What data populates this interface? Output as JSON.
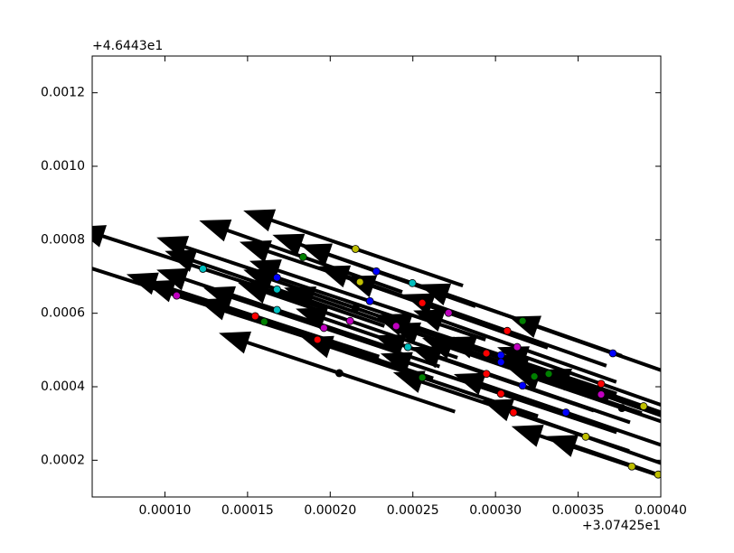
{
  "chart_data": {
    "type": "quiver",
    "x_offset": "+3.07425e1",
    "y_offset": "+4.6443e1",
    "xlim": [
      5.6e-05,
      0.0004
    ],
    "ylim": [
      0.0001,
      0.0013
    ],
    "xticks": [
      {
        "value": 0.0001,
        "label": "0.00010"
      },
      {
        "value": 0.00015,
        "label": "0.00015"
      },
      {
        "value": 0.0002,
        "label": "0.00020"
      },
      {
        "value": 0.00025,
        "label": "0.00025"
      },
      {
        "value": 0.0003,
        "label": "0.00030"
      },
      {
        "value": 0.00035,
        "label": "0.00035"
      },
      {
        "value": 0.0004,
        "label": "0.00040"
      }
    ],
    "yticks": [
      {
        "value": 0.0002,
        "label": "0.0002"
      },
      {
        "value": 0.0004,
        "label": "0.0004"
      },
      {
        "value": 0.0006,
        "label": "0.0006"
      },
      {
        "value": 0.0008,
        "label": "0.0008"
      },
      {
        "value": 0.001,
        "label": "0.0010"
      },
      {
        "value": 0.0012,
        "label": "0.0012"
      }
    ],
    "x": [
      0.0002153,
      0.000123,
      0.0001836,
      0.0001678,
      0.0001678,
      0.0002279,
      0.000218,
      0.0002497,
      0.0001071,
      0.0002557,
      0.000224,
      0.0002153,
      0.0001678,
      0.0002716,
      0.0001546,
      0.0001601,
      0.0003164,
      0.000212,
      0.0001962,
      0.0002399,
      0.0003071,
      0.0001923,
      0.000247,
      0.0003131,
      0.0002945,
      0.0003033,
      0.000371,
      0.0003033,
      0.0002055,
      0.0002945,
      0.0003322,
      0.0003235,
      0.0002557,
      0.0003639,
      0.0003164,
      0.0003033,
      0.0003639,
      0.0003765,
      0.0003896,
      0.0003109,
      0.0003426,
      0.0003546,
      0.0003825,
      0.0003984
    ],
    "y": [
      0.000775,
      0.000721,
      0.000753,
      0.000697,
      0.000665,
      0.000714,
      0.000685,
      0.000682,
      0.000648,
      0.000628,
      0.000633,
      0.000614,
      0.000609,
      0.000601,
      0.000592,
      0.000577,
      0.000579,
      0.000579,
      0.00056,
      0.000565,
      0.000552,
      0.000528,
      0.000508,
      0.000508,
      0.000491,
      0.000486,
      0.000491,
      0.000467,
      0.000437,
      0.000435,
      0.000435,
      0.000428,
      0.000425,
      0.000408,
      0.000403,
      0.000381,
      0.000379,
      0.000342,
      0.000347,
      0.00033,
      0.00033,
      0.000264,
      0.000183,
      0.000161
    ],
    "u": [
      -0.00013,
      -0.00015,
      -0.00012,
      -0.00014,
      -0.00013,
      -0.00012,
      -0.00014,
      -0.00013,
      -0.00016,
      -0.00012,
      -0.00014,
      -0.00013,
      -0.00014,
      -0.00012,
      -0.00015,
      -0.00014,
      -0.00012,
      -0.00013,
      -0.00014,
      -0.00013,
      -0.00012,
      -0.00014,
      -0.00013,
      -0.00012,
      -0.00013,
      -0.00014,
      -0.00012,
      -0.00013,
      -0.00014,
      -0.00013,
      -0.00012,
      -0.00013,
      -0.00014,
      -0.00012,
      -0.00013,
      -0.00014,
      -0.00012,
      -0.00013,
      -0.00012,
      -0.00014,
      -0.00013,
      -0.00012,
      -0.00014,
      -0.00013
    ],
    "v": [
      0.0002,
      0.00022,
      0.00019,
      0.00021,
      0.0002,
      0.00019,
      0.00021,
      0.0002,
      0.00023,
      0.00019,
      0.00021,
      0.0002,
      0.00021,
      0.00019,
      0.00022,
      0.00021,
      0.00019,
      0.0002,
      0.00021,
      0.0002,
      0.00019,
      0.00021,
      0.0002,
      0.00019,
      0.0002,
      0.00021,
      0.00019,
      0.0002,
      0.00021,
      0.0002,
      0.00019,
      0.0002,
      0.00021,
      0.00019,
      0.0002,
      0.00021,
      0.00019,
      0.0002,
      0.00019,
      0.00021,
      0.0002,
      0.00019,
      0.00021,
      0.0002
    ],
    "colors": [
      "#bfbf00",
      "#00bfbf",
      "#008000",
      "#0000ff",
      "#00bfbf",
      "#0000ff",
      "#bfbf00",
      "#00bfbf",
      "#bf00bf",
      "#ff0000",
      "#0000ff",
      "#000000",
      "#00bfbf",
      "#bf00bf",
      "#ff0000",
      "#008000",
      "#008000",
      "#bf00bf",
      "#bf00bf",
      "#bf00bf",
      "#ff0000",
      "#ff0000",
      "#00bfbf",
      "#bf00bf",
      "#ff0000",
      "#0000ff",
      "#0000ff",
      "#0000ff",
      "#000000",
      "#ff0000",
      "#008000",
      "#008000",
      "#008000",
      "#ff0000",
      "#0000ff",
      "#ff0000",
      "#bf00bf",
      "#000000",
      "#bfbf00",
      "#ff0000",
      "#0000ff",
      "#bfbf00",
      "#bfbf00",
      "#bfbf00"
    ],
    "arrow_color": "#000000"
  }
}
